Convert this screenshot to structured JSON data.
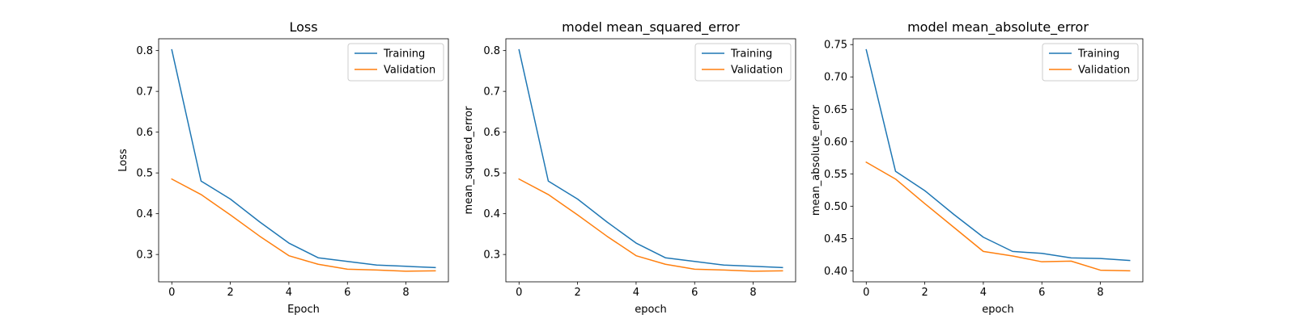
{
  "chart_data": [
    {
      "type": "line",
      "title": "Loss",
      "xlabel": "Epoch",
      "ylabel": "Loss",
      "x": [
        0,
        1,
        2,
        3,
        4,
        5,
        6,
        7,
        8,
        9
      ],
      "xticks": [
        0,
        2,
        4,
        6,
        8
      ],
      "xlim": [
        -0.45,
        9.45
      ],
      "yticks": [
        0.3,
        0.4,
        0.5,
        0.6,
        0.7,
        0.8
      ],
      "ytick_labels": [
        "0.3",
        "0.4",
        "0.5",
        "0.6",
        "0.7",
        "0.8"
      ],
      "ylim": [
        0.233,
        0.829
      ],
      "grid": false,
      "legend": "upper right",
      "series": [
        {
          "name": "Training",
          "color": "#1f77b4",
          "values": [
            0.802,
            0.48,
            0.436,
            0.38,
            0.328,
            0.292,
            0.283,
            0.274,
            0.271,
            0.268
          ]
        },
        {
          "name": "Validation",
          "color": "#ff7f0e",
          "values": [
            0.485,
            0.447,
            0.397,
            0.345,
            0.297,
            0.276,
            0.264,
            0.262,
            0.259,
            0.26
          ]
        }
      ]
    },
    {
      "type": "line",
      "title": "model mean_squared_error",
      "xlabel": "epoch",
      "ylabel": "mean_squared_error",
      "x": [
        0,
        1,
        2,
        3,
        4,
        5,
        6,
        7,
        8,
        9
      ],
      "xticks": [
        0,
        2,
        4,
        6,
        8
      ],
      "xlim": [
        -0.45,
        9.45
      ],
      "yticks": [
        0.3,
        0.4,
        0.5,
        0.6,
        0.7,
        0.8
      ],
      "ytick_labels": [
        "0.3",
        "0.4",
        "0.5",
        "0.6",
        "0.7",
        "0.8"
      ],
      "ylim": [
        0.233,
        0.829
      ],
      "grid": false,
      "legend": "upper right",
      "series": [
        {
          "name": "Training",
          "color": "#1f77b4",
          "values": [
            0.802,
            0.48,
            0.436,
            0.38,
            0.328,
            0.292,
            0.283,
            0.274,
            0.271,
            0.268
          ]
        },
        {
          "name": "Validation",
          "color": "#ff7f0e",
          "values": [
            0.485,
            0.447,
            0.397,
            0.345,
            0.297,
            0.276,
            0.264,
            0.262,
            0.259,
            0.26
          ]
        }
      ]
    },
    {
      "type": "line",
      "title": "model mean_absolute_error",
      "xlabel": "epoch",
      "ylabel": "mean_absolute_error",
      "x": [
        0,
        1,
        2,
        3,
        4,
        5,
        6,
        7,
        8,
        9
      ],
      "xticks": [
        0,
        2,
        4,
        6,
        8
      ],
      "xlim": [
        -0.45,
        9.45
      ],
      "yticks": [
        0.4,
        0.45,
        0.5,
        0.55,
        0.6,
        0.65,
        0.7,
        0.75
      ],
      "ytick_labels": [
        "0.40",
        "0.45",
        "0.50",
        "0.55",
        "0.60",
        "0.65",
        "0.70",
        "0.75"
      ],
      "ylim": [
        0.383,
        0.759
      ],
      "grid": false,
      "legend": "upper right",
      "series": [
        {
          "name": "Training",
          "color": "#1f77b4",
          "values": [
            0.742,
            0.554,
            0.524,
            0.487,
            0.452,
            0.43,
            0.427,
            0.42,
            0.419,
            0.416
          ]
        },
        {
          "name": "Validation",
          "color": "#ff7f0e",
          "values": [
            0.568,
            0.542,
            0.504,
            0.467,
            0.43,
            0.423,
            0.414,
            0.415,
            0.401,
            0.4
          ]
        }
      ]
    }
  ]
}
